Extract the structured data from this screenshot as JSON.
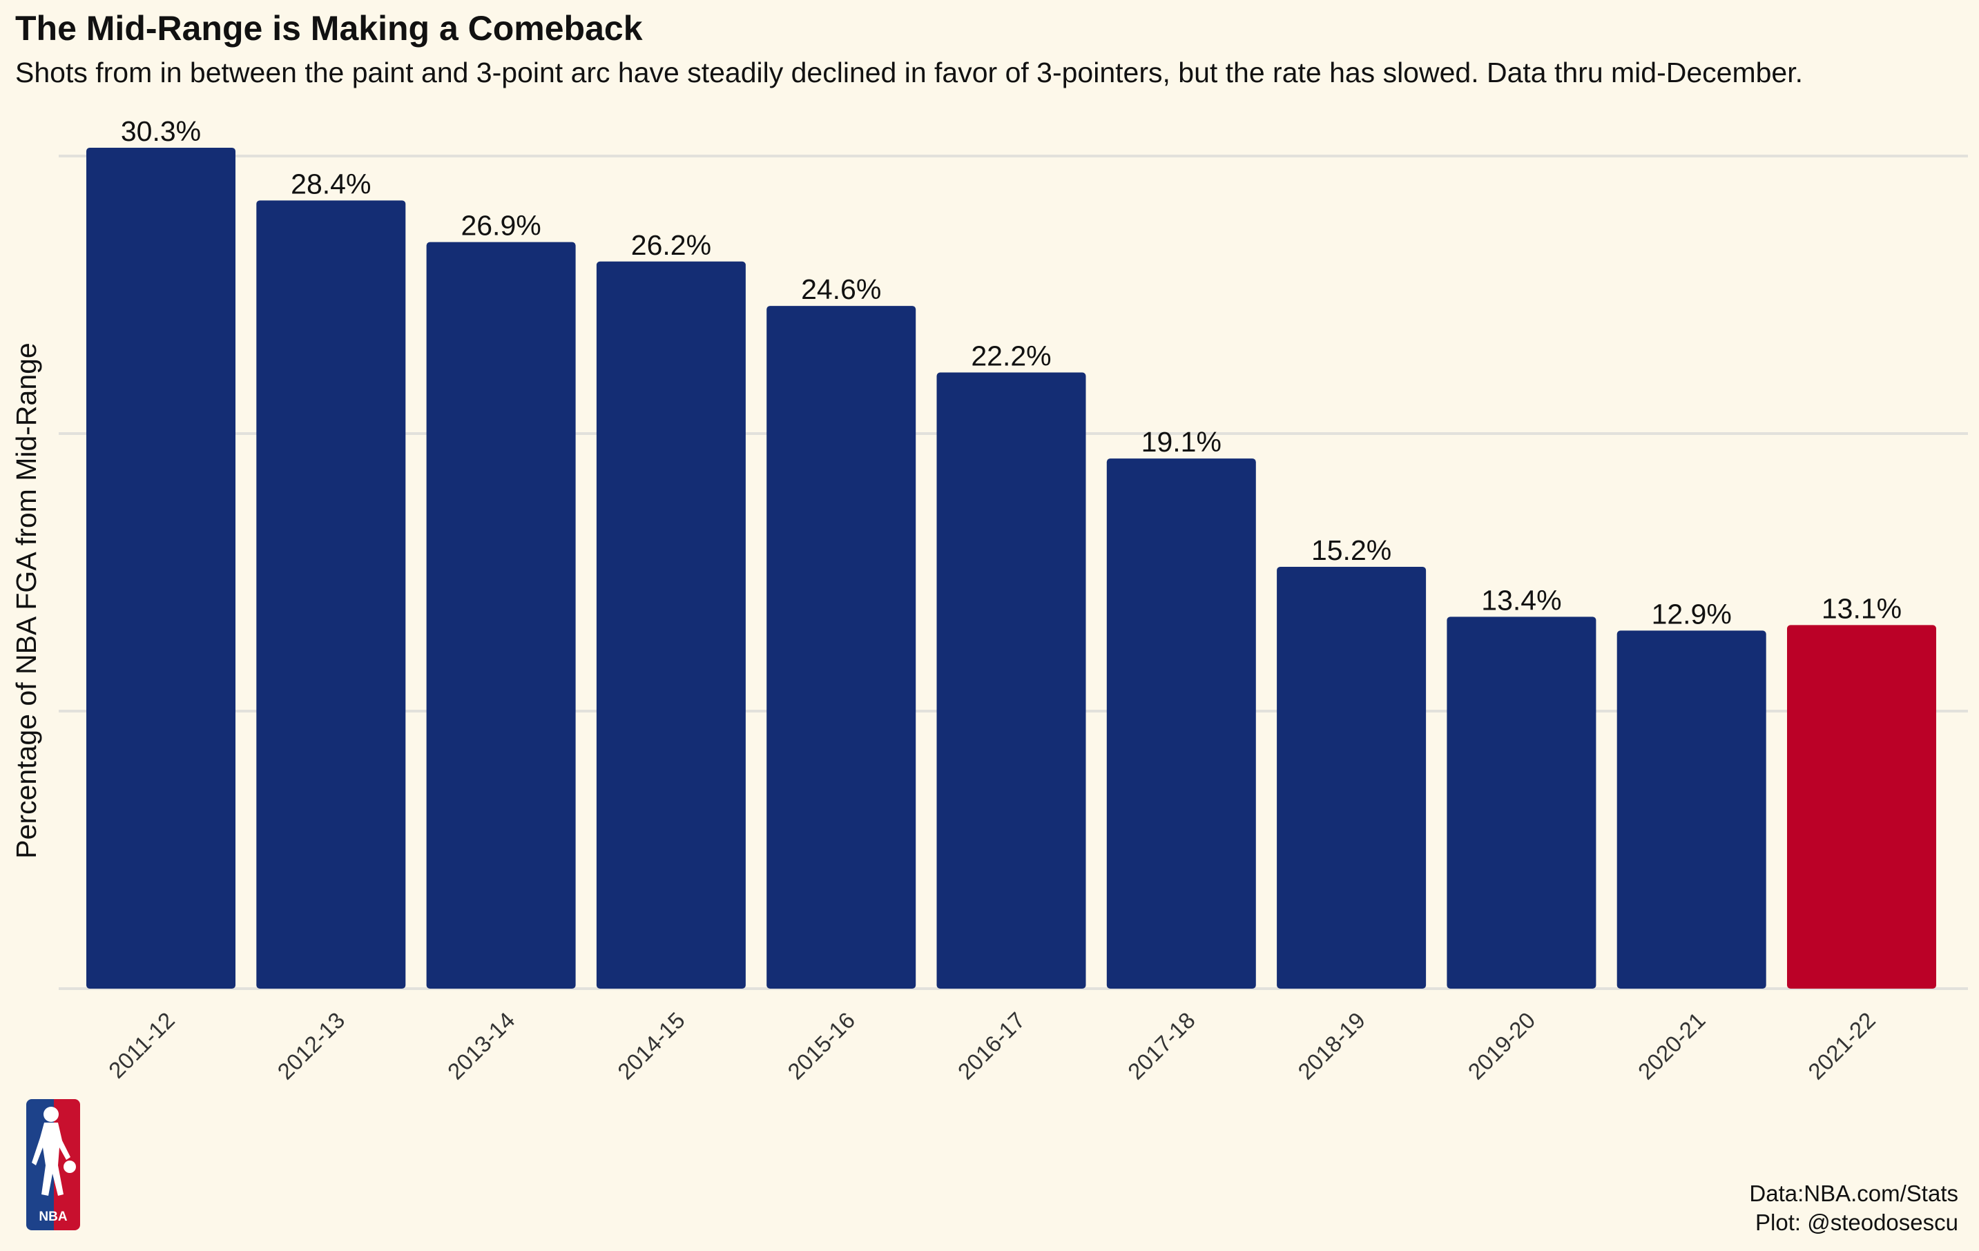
{
  "chart_data": {
    "type": "bar",
    "title": "The Mid-Range is Making a Comeback",
    "subtitle": "Shots from in between the paint and 3-point arc have steadily declined in favor of 3-pointers, but the rate has slowed. Data thru mid-December.",
    "xlabel": "",
    "ylabel": "Percentage of NBA FGA from Mid-Range",
    "categories": [
      "2011-12",
      "2012-13",
      "2013-14",
      "2014-15",
      "2015-16",
      "2016-17",
      "2017-18",
      "2018-19",
      "2019-20",
      "2020-21",
      "2021-22"
    ],
    "values": [
      30.3,
      28.4,
      26.9,
      26.2,
      24.6,
      22.2,
      19.1,
      15.2,
      13.4,
      12.9,
      13.1
    ],
    "data_labels": [
      "30.3%",
      "28.4%",
      "26.9%",
      "26.2%",
      "24.6%",
      "22.2%",
      "19.1%",
      "15.2%",
      "13.4%",
      "12.9%",
      "13.1%"
    ],
    "ylim": [
      0,
      31
    ],
    "y_gridlines": [
      0,
      10,
      20,
      30
    ],
    "y_tick_labels_shown": false,
    "grid": true,
    "legend": "none",
    "colors": {
      "default_bar": "#142d74",
      "highlight_bar": "#bb0127",
      "background": "#fdf8ea",
      "gridline": "#e2e1dc"
    },
    "highlight_category": "2021-22"
  },
  "logo": {
    "icon": "nba-logo-icon",
    "text": "NBA",
    "colors": {
      "left": "#1d428a",
      "right": "#c8102e",
      "figure": "#ffffff"
    }
  },
  "credits": {
    "line1": "Data:NBA.com/Stats",
    "line2": "Plot: @steodosescu"
  }
}
